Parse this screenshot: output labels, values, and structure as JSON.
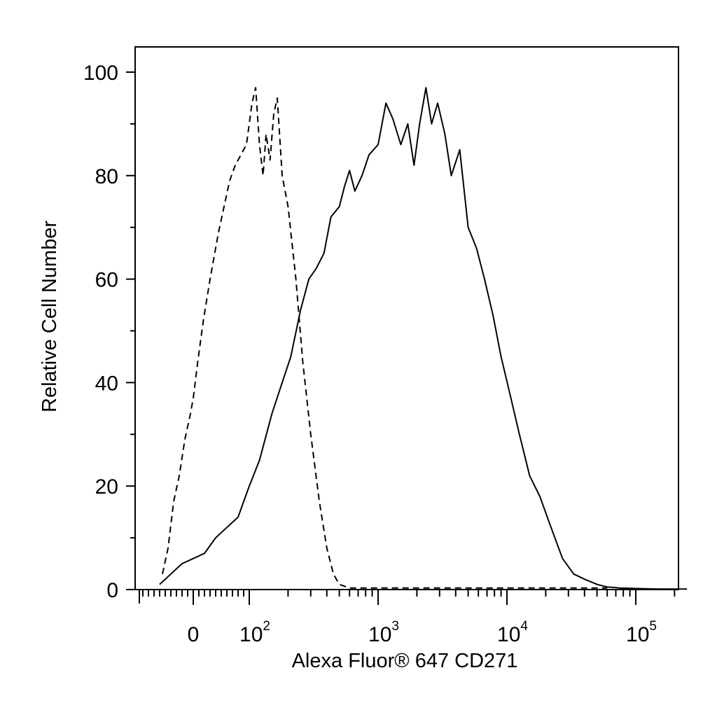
{
  "chart_data": {
    "type": "line",
    "title": "",
    "xlabel": "Alexa Fluor® 647 CD271",
    "ylabel": "Relative Cell Number",
    "xscale": "biexponential",
    "xlim": [
      -60,
      250000
    ],
    "ylim": [
      0,
      105
    ],
    "grid": false,
    "legend": "none",
    "y_ticks": [
      {
        "value": 0,
        "label": "0"
      },
      {
        "value": 20,
        "label": "20"
      },
      {
        "value": 40,
        "label": "40"
      },
      {
        "value": 60,
        "label": "60"
      },
      {
        "value": 80,
        "label": "80"
      },
      {
        "value": 100,
        "label": "100"
      }
    ],
    "x_ticks": [
      {
        "value": 0,
        "base": "0",
        "exp": ""
      },
      {
        "value": 100,
        "base": "10",
        "exp": "2"
      },
      {
        "value": 1000,
        "base": "10",
        "exp": "3"
      },
      {
        "value": 10000,
        "base": "10",
        "exp": "4"
      },
      {
        "value": 100000,
        "base": "10",
        "exp": "5"
      }
    ],
    "series": [
      {
        "style": "dashed",
        "color": "#000000",
        "x": [
          -55,
          -45,
          -35,
          -25,
          -15,
          -5,
          0,
          8,
          18,
          30,
          45,
          55,
          65,
          75,
          85,
          95,
          105,
          112,
          120,
          128,
          135,
          145,
          155,
          165,
          180,
          200,
          230,
          260,
          300,
          350,
          400,
          450,
          500,
          600,
          800,
          1500,
          3000,
          6000,
          20000,
          60000
        ],
        "y": [
          3,
          8,
          17,
          22,
          29,
          34,
          37,
          44,
          52,
          60,
          69,
          74,
          79,
          82,
          84,
          86,
          94,
          97,
          86,
          80,
          88,
          83,
          92,
          95,
          80,
          74,
          60,
          44,
          30,
          17,
          8,
          3,
          1,
          0.3,
          0.3,
          0.3,
          0.3,
          0.3,
          0.3,
          0.3
        ]
      },
      {
        "style": "solid",
        "color": "#000000",
        "x": [
          -60,
          -40,
          -20,
          0,
          20,
          40,
          60,
          80,
          100,
          120,
          150,
          180,
          210,
          250,
          290,
          330,
          380,
          430,
          500,
          550,
          600,
          660,
          750,
          850,
          1000,
          1150,
          1300,
          1500,
          1700,
          1900,
          2100,
          2350,
          2600,
          2900,
          3300,
          3700,
          4300,
          5000,
          5800,
          6700,
          7800,
          9000,
          10500,
          12500,
          15000,
          18000,
          22000,
          27000,
          33000,
          40000,
          50000,
          60000,
          75000,
          100000,
          150000,
          250000
        ],
        "y": [
          1,
          3,
          5,
          6,
          7,
          10,
          12,
          14,
          20,
          25,
          34,
          40,
          45,
          54,
          60,
          62,
          65,
          72,
          74,
          78,
          81,
          77,
          80,
          84,
          86,
          94,
          91,
          86,
          90,
          82,
          90,
          97,
          90,
          94,
          88,
          80,
          85,
          70,
          66,
          60,
          53,
          45,
          38,
          30,
          22,
          18,
          12,
          6,
          3,
          2,
          1,
          0.5,
          0.3,
          0.2,
          0.1,
          0.1
        ]
      }
    ]
  }
}
